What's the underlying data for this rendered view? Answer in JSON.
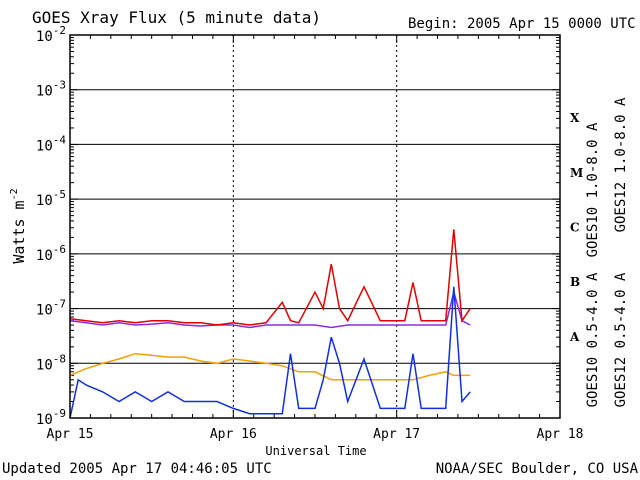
{
  "chart_data": {
    "type": "line",
    "title": "GOES Xray Flux (5 minute data)",
    "begin_label": "Begin:  2005 Apr 15 0000 UTC",
    "xlabel": "Universal Time",
    "ylabel": "Watts m",
    "ylabel_sup": "-2",
    "y_scale": "log",
    "ylim": [
      1e-09,
      0.01
    ],
    "xlim": [
      0,
      3
    ],
    "x_ticks": [
      "Apr 15",
      "Apr 16",
      "Apr 17",
      "Apr 18"
    ],
    "y_ticks": [
      {
        "base": "10",
        "exp": "-2"
      },
      {
        "base": "10",
        "exp": "-3"
      },
      {
        "base": "10",
        "exp": "-4"
      },
      {
        "base": "10",
        "exp": "-5"
      },
      {
        "base": "10",
        "exp": "-6"
      },
      {
        "base": "10",
        "exp": "-7"
      },
      {
        "base": "10",
        "exp": "-8"
      },
      {
        "base": "10",
        "exp": "-9"
      }
    ],
    "flare_classes": [
      "X",
      "M",
      "C",
      "B",
      "A"
    ],
    "grid": "horizontal at each decade",
    "legend_position": "right, vertical text",
    "series": [
      {
        "name": "GOES10 1.0-8.0 A",
        "color": "#8a2be2",
        "x": [
          0,
          0.1,
          0.2,
          0.3,
          0.4,
          0.5,
          0.6,
          0.7,
          0.8,
          0.9,
          1.0,
          1.1,
          1.2,
          1.3,
          1.4,
          1.5,
          1.6,
          1.7,
          1.8,
          1.9,
          2.0,
          2.1,
          2.2,
          2.3,
          2.35,
          2.4,
          2.45
        ],
        "y": [
          6e-08,
          5.5e-08,
          5e-08,
          5.5e-08,
          5e-08,
          5.2e-08,
          5.5e-08,
          5e-08,
          4.8e-08,
          5e-08,
          5e-08,
          4.5e-08,
          5e-08,
          5e-08,
          5e-08,
          5e-08,
          4.5e-08,
          5e-08,
          5e-08,
          5e-08,
          5e-08,
          5e-08,
          5e-08,
          5e-08,
          2e-07,
          6e-08,
          5e-08
        ]
      },
      {
        "name": "GOES12 1.0-8.0 A",
        "color": "#e00000",
        "x": [
          0,
          0.1,
          0.2,
          0.3,
          0.4,
          0.5,
          0.6,
          0.7,
          0.8,
          0.9,
          1.0,
          1.1,
          1.2,
          1.3,
          1.35,
          1.4,
          1.5,
          1.55,
          1.6,
          1.65,
          1.7,
          1.8,
          1.9,
          2.0,
          2.05,
          2.1,
          2.15,
          2.2,
          2.3,
          2.35,
          2.4,
          2.45
        ],
        "y": [
          6.5e-08,
          6e-08,
          5.5e-08,
          6e-08,
          5.5e-08,
          6e-08,
          6e-08,
          5.5e-08,
          5.5e-08,
          5e-08,
          5.5e-08,
          5e-08,
          5.5e-08,
          1.3e-07,
          6e-08,
          5.5e-08,
          2e-07,
          1e-07,
          6.5e-07,
          1e-07,
          6e-08,
          2.5e-07,
          6e-08,
          6e-08,
          6e-08,
          3e-07,
          6e-08,
          6e-08,
          6e-08,
          2.8e-06,
          6e-08,
          1e-07
        ]
      },
      {
        "name": "GOES10 0.5-4.0 A",
        "color": "#f5a000",
        "x": [
          0,
          0.1,
          0.2,
          0.3,
          0.4,
          0.5,
          0.6,
          0.7,
          0.8,
          0.9,
          1.0,
          1.1,
          1.2,
          1.3,
          1.4,
          1.5,
          1.6,
          1.7,
          1.8,
          1.9,
          2.0,
          2.1,
          2.2,
          2.3,
          2.35,
          2.4,
          2.45
        ],
        "y": [
          6e-09,
          8e-09,
          1e-08,
          1.2e-08,
          1.5e-08,
          1.4e-08,
          1.3e-08,
          1.3e-08,
          1.1e-08,
          1e-08,
          1.2e-08,
          1.1e-08,
          1e-08,
          9e-09,
          7e-09,
          7e-09,
          5e-09,
          5e-09,
          5e-09,
          5e-09,
          5e-09,
          5e-09,
          6e-09,
          7e-09,
          6e-09,
          6e-09,
          6e-09
        ]
      },
      {
        "name": "GOES12 0.5-4.0 A",
        "color": "#1030e0",
        "x": [
          0,
          0.05,
          0.1,
          0.2,
          0.3,
          0.4,
          0.5,
          0.6,
          0.7,
          0.8,
          0.9,
          1.0,
          1.1,
          1.2,
          1.3,
          1.35,
          1.4,
          1.5,
          1.55,
          1.6,
          1.65,
          1.7,
          1.8,
          1.9,
          2.0,
          2.05,
          2.1,
          2.15,
          2.2,
          2.3,
          2.35,
          2.4,
          2.45
        ],
        "y": [
          1e-09,
          5e-09,
          4e-09,
          3e-09,
          2e-09,
          3e-09,
          2e-09,
          3e-09,
          2e-09,
          2e-09,
          2e-09,
          1.5e-09,
          1.2e-09,
          1.2e-09,
          1.2e-09,
          1.5e-08,
          1.5e-09,
          1.5e-09,
          5e-09,
          3e-08,
          1e-08,
          2e-09,
          1.2e-08,
          1.5e-09,
          1.5e-09,
          1.5e-09,
          1.5e-08,
          1.5e-09,
          1.5e-09,
          1.5e-09,
          2.5e-07,
          2e-09,
          3e-09
        ]
      }
    ]
  },
  "footer": {
    "updated": "Updated 2005 Apr 17 04:46:05 UTC",
    "credit": "NOAA/SEC Boulder, CO USA"
  }
}
